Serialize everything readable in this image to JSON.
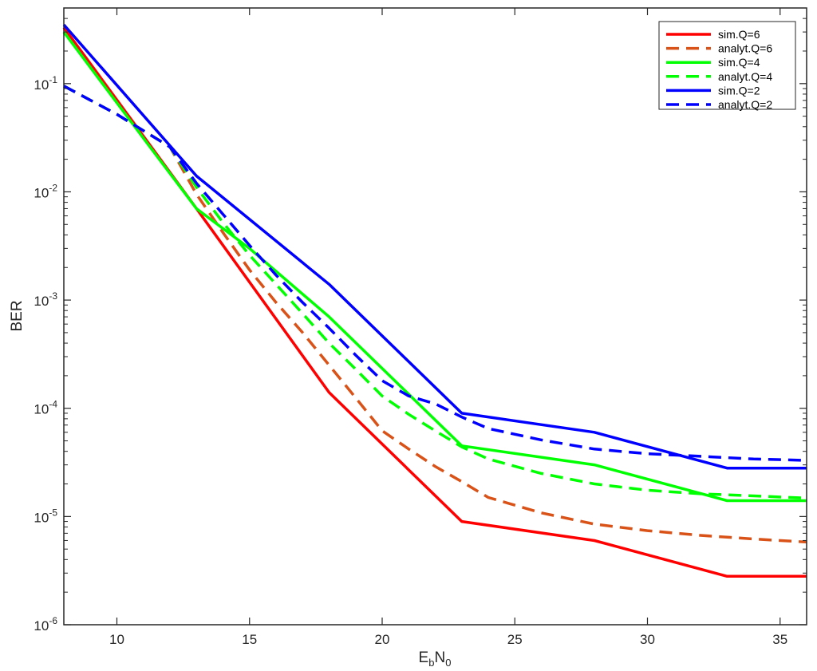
{
  "chart_data": {
    "type": "line",
    "title": "",
    "xlabel": {
      "base": "E",
      "sub1": "b",
      "mid": "N",
      "sub2": "0"
    },
    "ylabel": "BER",
    "xlim": [
      8,
      36
    ],
    "ylim": [
      1e-06,
      0.5
    ],
    "y_scale": "log",
    "grid": false,
    "legend_position": "top-right",
    "x_ticks": [
      "10",
      "15",
      "20",
      "25",
      "30",
      "35"
    ],
    "x_tick_values": [
      10,
      15,
      20,
      25,
      30,
      35
    ],
    "y_ticks": [
      {
        "base": "10",
        "exp": "-1",
        "value": 0.1
      },
      {
        "base": "10",
        "exp": "-2",
        "value": 0.01
      },
      {
        "base": "10",
        "exp": "-3",
        "value": 0.001
      },
      {
        "base": "10",
        "exp": "-4",
        "value": 0.0001
      },
      {
        "base": "10",
        "exp": "-5",
        "value": 1e-05
      },
      {
        "base": "10",
        "exp": "-6",
        "value": 1e-06
      }
    ],
    "series": [
      {
        "name": "sim.Q=6",
        "color": "#ff0000",
        "dash": "solid",
        "x": [
          8,
          13,
          18,
          23,
          28,
          33,
          36
        ],
        "y": [
          0.33,
          0.007,
          0.00014,
          9e-06,
          6e-06,
          2.8e-06,
          2.8e-06
        ]
      },
      {
        "name": "analyt.Q=6",
        "color": "#d95319",
        "dash": "dashed",
        "x": [
          8,
          10,
          12,
          13,
          14,
          15,
          16,
          17,
          18,
          19,
          20,
          21,
          22,
          23,
          24,
          26,
          28,
          30,
          32,
          34,
          36
        ],
        "y": [
          0.095,
          0.052,
          0.026,
          0.0095,
          0.0042,
          0.0019,
          0.00095,
          0.0005,
          0.00025,
          0.000125,
          6.2e-05,
          4.2e-05,
          2.9e-05,
          2.1e-05,
          1.5e-05,
          1.08e-05,
          8.5e-06,
          7.4e-06,
          6.7e-06,
          6.2e-06,
          5.8e-06
        ]
      },
      {
        "name": "sim.Q=4",
        "color": "#00ff00",
        "dash": "solid",
        "x": [
          8,
          11.3,
          13,
          15,
          18,
          23,
          28,
          33,
          36
        ],
        "y": [
          0.3,
          0.025,
          0.007,
          0.003,
          0.0007,
          4.5e-05,
          3e-05,
          1.4e-05,
          1.4e-05
        ]
      },
      {
        "name": "analyt.Q=4",
        "color": "#00ff00",
        "dash": "dashed",
        "x": [
          8,
          10,
          12,
          13,
          14,
          15,
          16,
          17,
          18,
          19,
          20,
          21,
          22,
          23,
          24,
          26,
          28,
          30,
          32,
          34,
          36
        ],
        "y": [
          0.095,
          0.052,
          0.026,
          0.011,
          0.0052,
          0.0026,
          0.0014,
          0.00075,
          0.0004,
          0.00023,
          0.00013,
          8.8e-05,
          6.2e-05,
          4.4e-05,
          3.4e-05,
          2.5e-05,
          2e-05,
          1.75e-05,
          1.62e-05,
          1.55e-05,
          1.48e-05
        ]
      },
      {
        "name": "sim.Q=2",
        "color": "#0000ff",
        "dash": "solid",
        "x": [
          8,
          13,
          18,
          23,
          28,
          33,
          36
        ],
        "y": [
          0.35,
          0.014,
          0.0014,
          9e-05,
          6e-05,
          2.8e-05,
          2.8e-05
        ]
      },
      {
        "name": "analyt.Q=2",
        "color": "#0000ff",
        "dash": "dashed",
        "x": [
          8,
          10,
          12,
          13,
          14,
          15,
          16,
          17,
          18,
          19,
          20,
          21,
          22,
          23,
          24,
          26,
          28,
          30,
          32,
          34,
          36
        ],
        "y": [
          0.095,
          0.052,
          0.026,
          0.012,
          0.0062,
          0.0032,
          0.0017,
          0.00095,
          0.00055,
          0.00031,
          0.00018,
          0.00013,
          0.00011,
          8.3e-05,
          6.5e-05,
          5.1e-05,
          4.2e-05,
          3.8e-05,
          3.6e-05,
          3.4e-05,
          3.3e-05
        ]
      }
    ]
  }
}
